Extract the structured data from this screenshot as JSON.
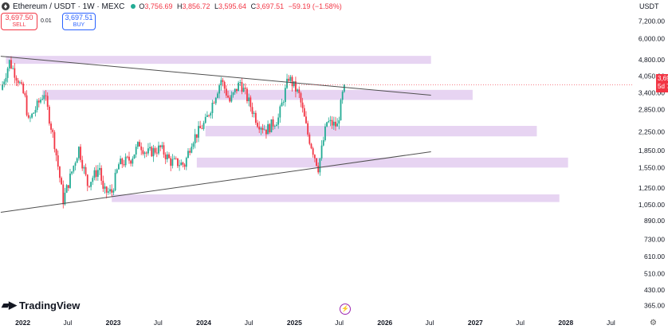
{
  "header": {
    "title": "Ethereum / USDT · 1W · MEXC",
    "ohlc": [
      {
        "label": "O",
        "value": "3,756.69"
      },
      {
        "label": "H",
        "value": "3,856.72"
      },
      {
        "label": "L",
        "value": "3,595.64"
      },
      {
        "label": "C",
        "value": "3,697.51"
      }
    ],
    "change": "−59.19 (−1.58%)"
  },
  "trade": {
    "sell_price": "3,697.50",
    "sell_label": "SELL",
    "spread": "0.01",
    "buy_price": "3,697.51",
    "buy_label": "BUY"
  },
  "price_axis": {
    "currency": "USDT",
    "labels": [
      "7,200.00",
      "6,000.00",
      "4,800.00",
      "4,050.00",
      "3,400.00",
      "2,850.00",
      "2,250.00",
      "1,850.00",
      "1,550.00",
      "1,250.00",
      "1,050.00",
      "890.00",
      "730.00",
      "610.00",
      "510.00",
      "430.00",
      "365.00"
    ],
    "last_price": "3,697.51",
    "countdown": "5d 7h"
  },
  "brand": "TradingView",
  "colors": {
    "up": "#22ab94",
    "down": "#f23645",
    "zone": "#e3cdf0",
    "trendline": "#505050"
  },
  "chart_data": {
    "type": "candlestick",
    "symbol": "Ethereum / USDT",
    "interval": "1W",
    "exchange": "MEXC",
    "y_scale": "log",
    "ylim": [
      340,
      7600
    ],
    "x_range": [
      "2021-10",
      "2028-10"
    ],
    "time_labels": [
      {
        "label": "2022",
        "date": "2022-01"
      },
      {
        "label": "Jul",
        "date": "2022-07"
      },
      {
        "label": "2023",
        "date": "2023-01"
      },
      {
        "label": "Jul",
        "date": "2023-07"
      },
      {
        "label": "2024",
        "date": "2024-01"
      },
      {
        "label": "Jul",
        "date": "2024-07"
      },
      {
        "label": "2025",
        "date": "2025-01"
      },
      {
        "label": "Jul",
        "date": "2025-07"
      },
      {
        "label": "2026",
        "date": "2026-01"
      },
      {
        "label": "Jul",
        "date": "2026-07"
      },
      {
        "label": "2027",
        "date": "2027-01"
      },
      {
        "label": "Jul",
        "date": "2027-07"
      },
      {
        "label": "2028",
        "date": "2028-01"
      },
      {
        "label": "Jul",
        "date": "2028-07"
      }
    ],
    "price_path": [
      {
        "date": "2021-10-04",
        "close": 3500
      },
      {
        "date": "2021-11-08",
        "close": 4700
      },
      {
        "date": "2021-12-13",
        "close": 3900
      },
      {
        "date": "2022-01-10",
        "close": 3200
      },
      {
        "date": "2022-01-24",
        "close": 2500
      },
      {
        "date": "2022-03-28",
        "close": 3400
      },
      {
        "date": "2022-05-09",
        "close": 2000
      },
      {
        "date": "2022-06-13",
        "close": 1100
      },
      {
        "date": "2022-07-11",
        "close": 1400
      },
      {
        "date": "2022-08-15",
        "close": 1900
      },
      {
        "date": "2022-09-19",
        "close": 1300
      },
      {
        "date": "2022-11-07",
        "close": 1550
      },
      {
        "date": "2022-11-21",
        "close": 1200
      },
      {
        "date": "2022-12-26",
        "close": 1200
      },
      {
        "date": "2023-01-23",
        "close": 1600
      },
      {
        "date": "2023-03-13",
        "close": 1700
      },
      {
        "date": "2023-04-17",
        "close": 2000
      },
      {
        "date": "2023-05-15",
        "close": 1800
      },
      {
        "date": "2023-07-10",
        "close": 1900
      },
      {
        "date": "2023-08-21",
        "close": 1650
      },
      {
        "date": "2023-10-16",
        "close": 1600
      },
      {
        "date": "2023-11-13",
        "close": 2050
      },
      {
        "date": "2024-01-08",
        "close": 2500
      },
      {
        "date": "2024-03-11",
        "close": 3900
      },
      {
        "date": "2024-04-15",
        "close": 3100
      },
      {
        "date": "2024-05-27",
        "close": 3800
      },
      {
        "date": "2024-08-05",
        "close": 2500
      },
      {
        "date": "2024-09-09",
        "close": 2300
      },
      {
        "date": "2024-10-28",
        "close": 2600
      },
      {
        "date": "2024-12-09",
        "close": 4000
      },
      {
        "date": "2025-01-20",
        "close": 3300
      },
      {
        "date": "2025-02-24",
        "close": 2200
      },
      {
        "date": "2025-04-07",
        "close": 1550
      },
      {
        "date": "2025-05-12",
        "close": 2500
      },
      {
        "date": "2025-06-23",
        "close": 2400
      },
      {
        "date": "2025-07-21",
        "close": 3697
      }
    ],
    "zones": [
      {
        "from": "2021-10-25",
        "to": "2026-07-06",
        "low": 4600,
        "high": 5000
      },
      {
        "from": "2022-03-21",
        "to": "2026-12-21",
        "low": 3150,
        "high": 3500
      },
      {
        "from": "2024-01-08",
        "to": "2027-09-06",
        "low": 2150,
        "high": 2400
      },
      {
        "from": "2023-12-04",
        "to": "2028-01-10",
        "low": 1550,
        "high": 1720
      },
      {
        "from": "2022-12-26",
        "to": "2027-12-06",
        "low": 1080,
        "high": 1170
      }
    ],
    "trendlines": [
      {
        "from": {
          "date": "2021-10-04",
          "price": 4980
        },
        "to": {
          "date": "2026-07-06",
          "price": 3310
        }
      },
      {
        "from": {
          "date": "2021-10-04",
          "price": 970
        },
        "to": {
          "date": "2026-07-06",
          "price": 1830
        }
      }
    ],
    "last_price_line": 3697.51
  }
}
